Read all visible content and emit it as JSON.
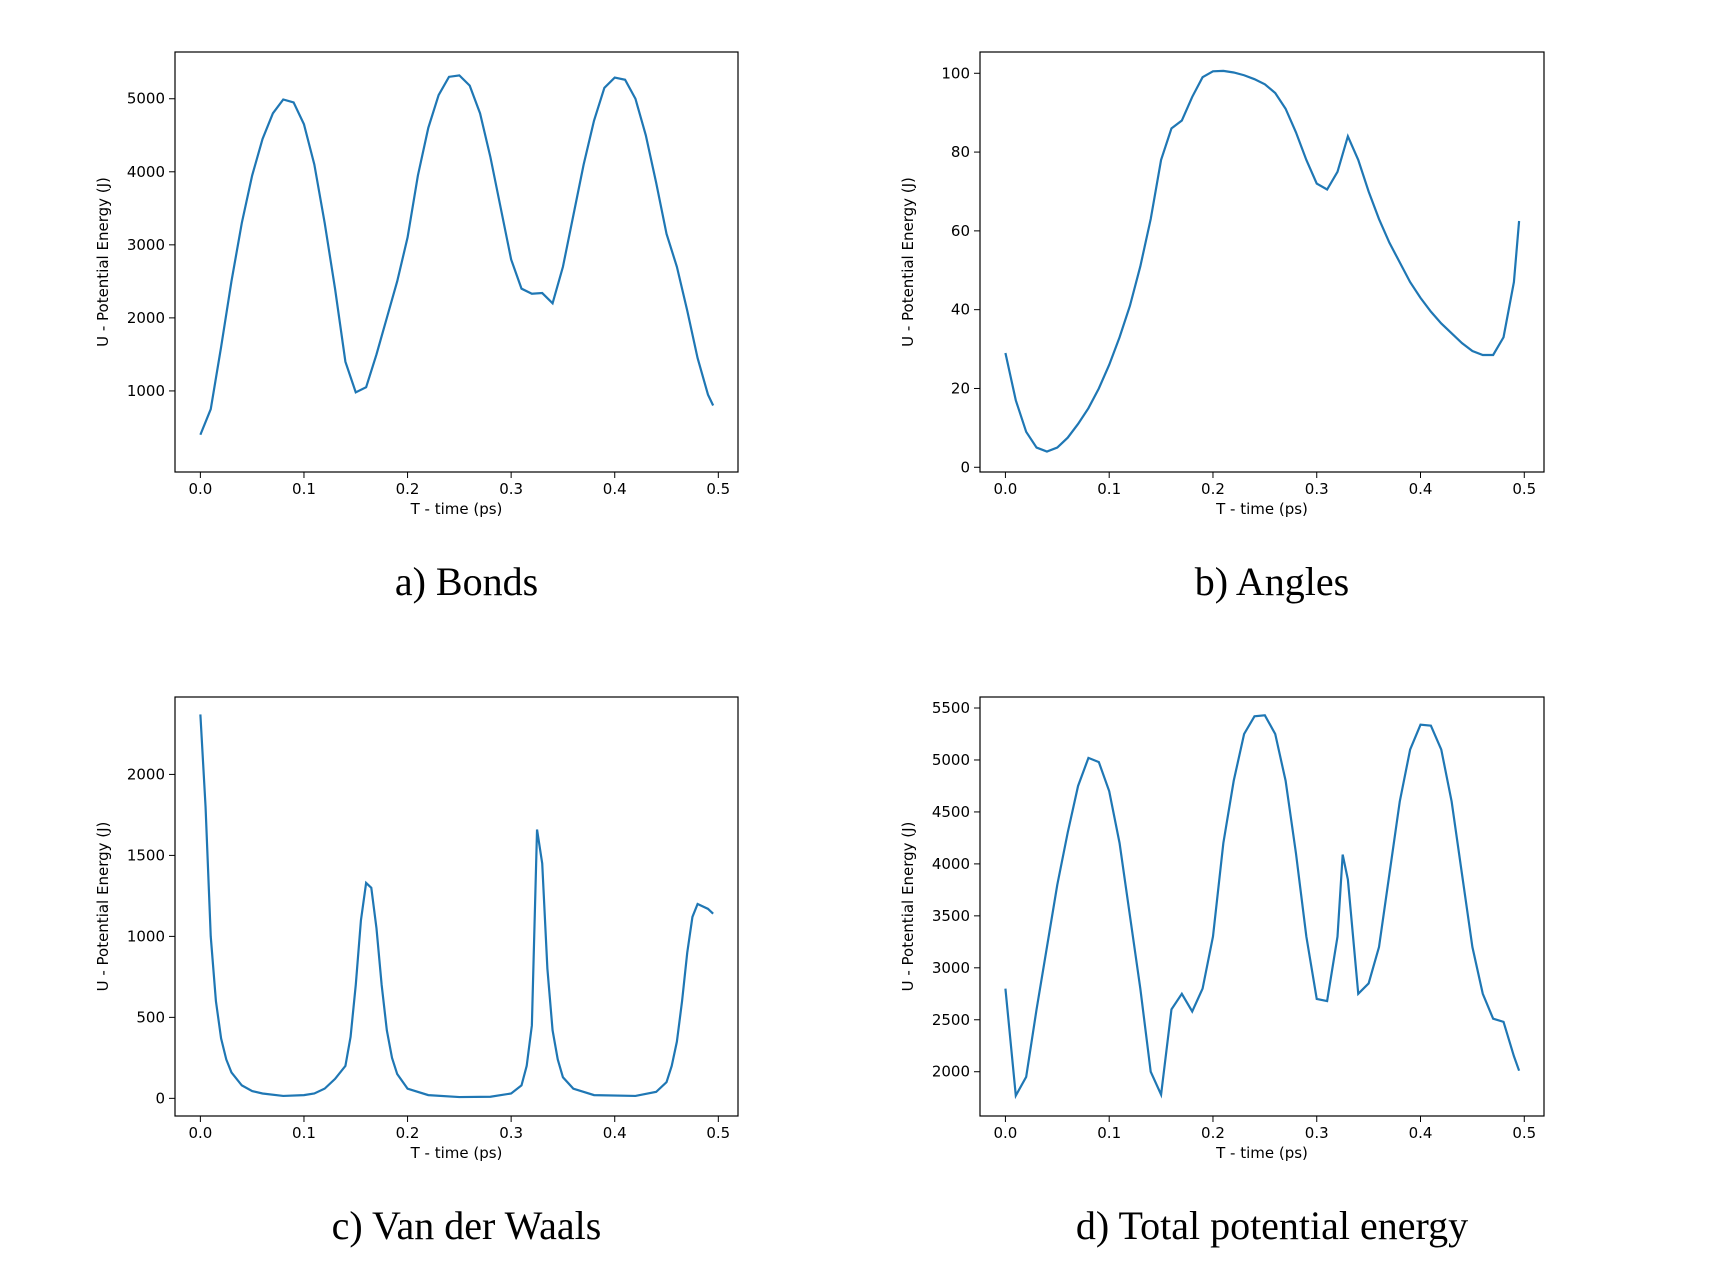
{
  "chart_data": [
    {
      "type": "line",
      "caption": "a) Bonds",
      "xlabel": "T - time (ps)",
      "ylabel": "U - Potential Energy (J)",
      "color": "#1f77b4",
      "x": [
        0,
        0.01,
        0.02,
        0.03,
        0.04,
        0.05,
        0.06,
        0.07,
        0.08,
        0.09,
        0.1,
        0.11,
        0.12,
        0.13,
        0.14,
        0.15,
        0.16,
        0.17,
        0.18,
        0.19,
        0.2,
        0.21,
        0.22,
        0.23,
        0.24,
        0.25,
        0.26,
        0.27,
        0.28,
        0.29,
        0.3,
        0.31,
        0.32,
        0.33,
        0.34,
        0.35,
        0.36,
        0.37,
        0.38,
        0.39,
        0.4,
        0.41,
        0.42,
        0.43,
        0.44,
        0.45,
        0.46,
        0.47,
        0.48,
        0.49,
        0.495
      ],
      "values": [
        400,
        750,
        1600,
        2500,
        3300,
        3950,
        4450,
        4800,
        4990,
        4950,
        4650,
        4100,
        3300,
        2400,
        1400,
        980,
        1050,
        1500,
        2000,
        2500,
        3100,
        3950,
        4600,
        5050,
        5300,
        5320,
        5180,
        4800,
        4200,
        3500,
        2800,
        2400,
        2330,
        2340,
        2200,
        2700,
        3400,
        4100,
        4700,
        5150,
        5290,
        5260,
        5000,
        4500,
        3850,
        3150,
        2700,
        2100,
        1450,
        950,
        800
      ],
      "xlim": [
        -0.0245,
        0.519
      ],
      "xticks": [
        {
          "value": 0,
          "label": "0.0"
        },
        0.1,
        0.2,
        0.3,
        0.4,
        0.5
      ],
      "ylim": [
        -110,
        5640
      ],
      "yticks": [
        1000,
        2000,
        3000,
        4000,
        5000
      ]
    },
    {
      "type": "line",
      "caption": "b) Angles",
      "xlabel": "T - time (ps)",
      "ylabel": "U - Potential Energy (J)",
      "color": "#1f77b4",
      "x": [
        0,
        0.01,
        0.02,
        0.03,
        0.04,
        0.05,
        0.06,
        0.07,
        0.08,
        0.09,
        0.1,
        0.11,
        0.12,
        0.13,
        0.14,
        0.15,
        0.16,
        0.17,
        0.18,
        0.19,
        0.2,
        0.21,
        0.22,
        0.23,
        0.24,
        0.25,
        0.26,
        0.27,
        0.28,
        0.29,
        0.3,
        0.31,
        0.32,
        0.33,
        0.34,
        0.35,
        0.36,
        0.37,
        0.38,
        0.39,
        0.4,
        0.41,
        0.42,
        0.43,
        0.44,
        0.45,
        0.46,
        0.47,
        0.48,
        0.49,
        0.495
      ],
      "values": [
        29,
        17,
        9,
        5,
        4,
        5,
        7.5,
        11,
        15,
        20,
        26,
        33,
        41,
        51,
        63,
        78,
        86,
        88,
        94,
        99,
        100.5,
        100.6,
        100.2,
        99.5,
        98.5,
        97.2,
        95,
        91,
        85,
        78,
        72,
        70.5,
        75,
        84,
        78,
        70,
        63,
        57,
        52,
        47,
        43,
        39.5,
        36.5,
        34,
        31.5,
        29.5,
        28.5,
        28.5,
        33,
        47,
        62.5
      ],
      "xlim": [
        -0.0245,
        0.519
      ],
      "xticks": [
        {
          "value": 0,
          "label": "0.0"
        },
        0.1,
        0.2,
        0.3,
        0.4,
        0.5
      ],
      "ylim": [
        -1.2,
        105.4
      ],
      "yticks": [
        0,
        20,
        40,
        60,
        80,
        100
      ]
    },
    {
      "type": "line",
      "caption": "c) Van der Waals",
      "xlabel": "T - time (ps)",
      "ylabel": "U - Potential Energy (J)",
      "color": "#1f77b4",
      "x": [
        0,
        0.005,
        0.01,
        0.015,
        0.02,
        0.025,
        0.03,
        0.04,
        0.05,
        0.06,
        0.08,
        0.1,
        0.11,
        0.12,
        0.13,
        0.14,
        0.145,
        0.15,
        0.155,
        0.16,
        0.165,
        0.17,
        0.175,
        0.18,
        0.185,
        0.19,
        0.2,
        0.22,
        0.25,
        0.28,
        0.3,
        0.31,
        0.315,
        0.32,
        0.325,
        0.33,
        0.335,
        0.34,
        0.345,
        0.35,
        0.36,
        0.38,
        0.42,
        0.44,
        0.45,
        0.455,
        0.46,
        0.465,
        0.47,
        0.475,
        0.48,
        0.49,
        0.495
      ],
      "values": [
        2370,
        1800,
        1000,
        600,
        370,
        240,
        160,
        80,
        45,
        30,
        15,
        20,
        30,
        60,
        120,
        200,
        380,
        700,
        1100,
        1330,
        1300,
        1050,
        700,
        420,
        250,
        150,
        60,
        20,
        8,
        10,
        30,
        80,
        200,
        450,
        1660,
        1450,
        800,
        420,
        240,
        130,
        60,
        20,
        15,
        40,
        100,
        200,
        350,
        600,
        900,
        1120,
        1200,
        1170,
        1140
      ],
      "xlim": [
        -0.0245,
        0.519
      ],
      "xticks": [
        {
          "value": 0,
          "label": "0.0"
        },
        0.1,
        0.2,
        0.3,
        0.4,
        0.5
      ],
      "ylim": [
        -109,
        2478
      ],
      "yticks": [
        0,
        500,
        1000,
        1500,
        2000
      ]
    },
    {
      "type": "line",
      "caption": "d) Total potential energy",
      "xlabel": "T - time (ps)",
      "ylabel": "U - Potential Energy (J)",
      "color": "#1f77b4",
      "x": [
        0,
        0.01,
        0.02,
        0.03,
        0.04,
        0.05,
        0.06,
        0.07,
        0.08,
        0.09,
        0.1,
        0.11,
        0.12,
        0.13,
        0.14,
        0.15,
        0.16,
        0.17,
        0.18,
        0.19,
        0.2,
        0.21,
        0.22,
        0.23,
        0.24,
        0.25,
        0.26,
        0.27,
        0.28,
        0.29,
        0.3,
        0.31,
        0.32,
        0.325,
        0.33,
        0.34,
        0.35,
        0.36,
        0.37,
        0.38,
        0.39,
        0.4,
        0.41,
        0.42,
        0.43,
        0.44,
        0.45,
        0.46,
        0.47,
        0.48,
        0.49,
        0.495
      ],
      "values": [
        2800,
        1770,
        1950,
        2600,
        3200,
        3800,
        4300,
        4750,
        5020,
        4980,
        4700,
        4200,
        3500,
        2800,
        2000,
        1780,
        2600,
        2750,
        2580,
        2800,
        3300,
        4200,
        4800,
        5250,
        5420,
        5430,
        5250,
        4800,
        4100,
        3300,
        2700,
        2680,
        3300,
        4090,
        3850,
        2750,
        2850,
        3200,
        3900,
        4600,
        5100,
        5340,
        5330,
        5100,
        4600,
        3900,
        3200,
        2750,
        2510,
        2480,
        2150,
        2010
      ],
      "xlim": [
        -0.0245,
        0.519
      ],
      "xticks": [
        {
          "value": 0,
          "label": "0.0"
        },
        0.1,
        0.2,
        0.3,
        0.4,
        0.5
      ],
      "ylim": [
        1574,
        5606
      ],
      "yticks": [
        2000,
        2500,
        3000,
        3500,
        4000,
        4500,
        5000,
        5500
      ]
    }
  ]
}
